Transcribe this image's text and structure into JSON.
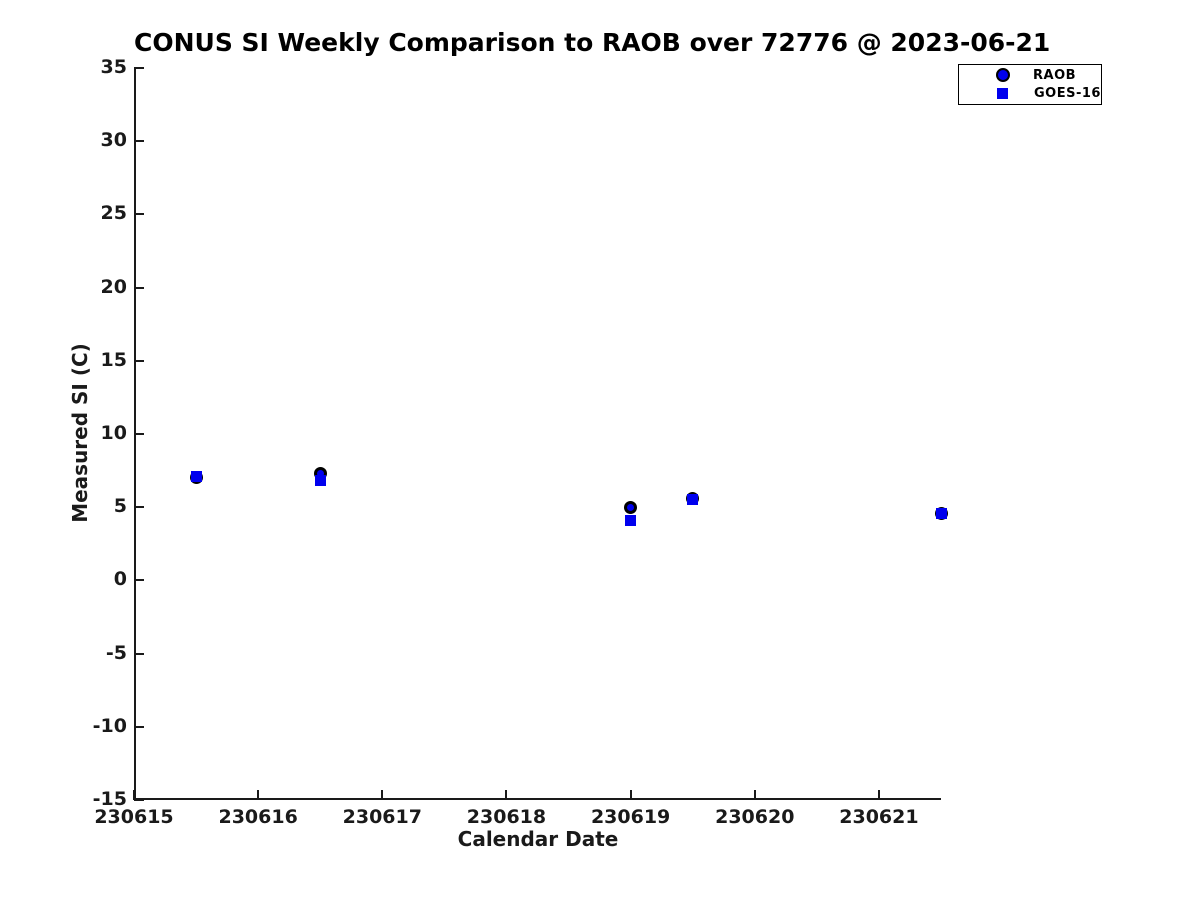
{
  "colors": {
    "series_blue": "#0000EE",
    "marker_edge": "#000000",
    "axis": "#1a1a1a",
    "background": "#ffffff"
  },
  "chart_data": {
    "type": "scatter",
    "title": "CONUS SI Weekly Comparison to RAOB over 72776 @ 2023-06-21",
    "xlabel": "Calendar Date",
    "ylabel": "Measured SI (C)",
    "xlim": [
      230615,
      230621.5
    ],
    "ylim": [
      -15,
      35
    ],
    "xticks": [
      230615,
      230616,
      230617,
      230618,
      230619,
      230620,
      230621
    ],
    "yticks": [
      35,
      30,
      25,
      20,
      15,
      10,
      5,
      0,
      -5,
      -10,
      -15
    ],
    "grid": false,
    "legend_position": "top-right",
    "series": [
      {
        "name": "RAOB",
        "marker": "circle",
        "fill": "#0000EE",
        "edge": "#000000",
        "x": [
          230615.5,
          230616.5,
          230619.0,
          230619.5,
          230621.5
        ],
        "y": [
          7.0,
          7.3,
          5.0,
          5.6,
          4.6
        ]
      },
      {
        "name": "GOES-16",
        "marker": "square",
        "fill": "#0000EE",
        "edge": "#0000EE",
        "x": [
          230615.5,
          230616.5,
          230619.0,
          230619.5,
          230621.5
        ],
        "y": [
          7.1,
          6.8,
          4.1,
          5.5,
          4.6
        ]
      }
    ]
  },
  "legend": {
    "items": [
      {
        "label": "RAOB",
        "marker": "circle"
      },
      {
        "label": "GOES-16",
        "marker": "square"
      }
    ]
  }
}
